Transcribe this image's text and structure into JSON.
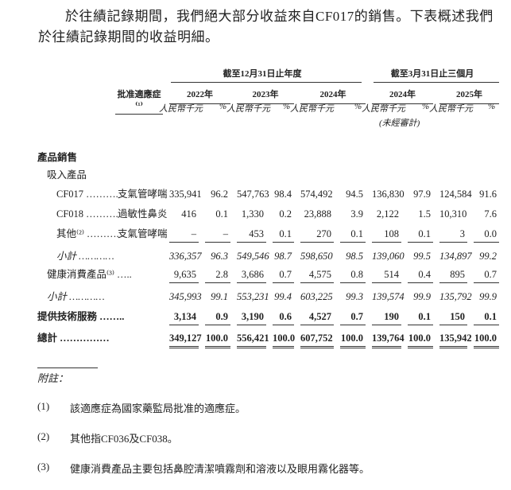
{
  "intro": "於往績記錄期間，我們絕大部分收益來自CF017的銷售。下表概述我們於往績記錄期間的收益明細。",
  "header": {
    "indication": "批准適應症⁽¹⁾",
    "group_year": "截至12月31日止年度",
    "group_quarter": "截至3月31日止三個月",
    "years": [
      "2022年",
      "2023年",
      "2024年",
      "2024年",
      "2025年"
    ],
    "unit_rmb": "人民幣千元",
    "unit_pct": "%",
    "unaudited": "(未經審計)"
  },
  "rows": [
    {
      "label": "產品銷售",
      "style": "bd",
      "indent": 0,
      "indication": "",
      "values": []
    },
    {
      "label": "吸入產品",
      "style": "",
      "indent": 1,
      "indication": "",
      "values": []
    },
    {
      "label": "CF017 ……….",
      "style": "",
      "indent": 2,
      "indication": "支氣管哮喘",
      "values": [
        "335,941",
        "96.2",
        "547,763",
        "98.4",
        "574,492",
        "94.5",
        "136,830",
        "97.9",
        "124,584",
        "91.6"
      ]
    },
    {
      "label": "CF018 ……….",
      "style": "",
      "indent": 2,
      "indication": "過敏性鼻炎",
      "values": [
        "416",
        "0.1",
        "1,330",
        "0.2",
        "23,888",
        "3.9",
        "2,122",
        "1.5",
        "10,310",
        "7.6"
      ]
    },
    {
      "label": "其他⁽²⁾ ……….",
      "style": "",
      "indent": 2,
      "indication": "支氣管哮喘",
      "values": [
        "–",
        "–",
        "453",
        "0.1",
        "270",
        "0.1",
        "108",
        "0.1",
        "3",
        "0.0"
      ],
      "line": "ul"
    },
    {
      "label": "小計 …………",
      "style": "it",
      "indent": 2,
      "indication": "",
      "values": [
        "336,357",
        "96.3",
        "549,546",
        "98.7",
        "598,650",
        "98.5",
        "139,060",
        "99.5",
        "134,897",
        "99.2"
      ]
    },
    {
      "label": "健康消費產品⁽³⁾ …..",
      "style": "",
      "indent": 1,
      "indication": "",
      "values": [
        "9,635",
        "2.8",
        "3,686",
        "0.7",
        "4,575",
        "0.8",
        "514",
        "0.4",
        "895",
        "0.7"
      ],
      "line": "ul"
    },
    {
      "label": "小計 …………",
      "style": "it",
      "indent": 1,
      "indication": "",
      "values": [
        "345,993",
        "99.1",
        "553,231",
        "99.4",
        "603,225",
        "99.3",
        "139,574",
        "99.9",
        "135,792",
        "99.9"
      ]
    },
    {
      "label": "提供技術服務 ……..",
      "style": "bd",
      "indent": 0,
      "indication": "",
      "values": [
        "3,134",
        "0.9",
        "3,190",
        "0.6",
        "4,527",
        "0.7",
        "190",
        "0.1",
        "150",
        "0.1"
      ],
      "line": "ul"
    },
    {
      "label": "總計 ……………",
      "style": "bd",
      "indent": 0,
      "indication": "",
      "values": [
        "349,127",
        "100.0",
        "556,421",
        "100.0",
        "607,752",
        "100.0",
        "139,764",
        "100.0",
        "135,942",
        "100.0"
      ],
      "line": "dul"
    }
  ],
  "notes": {
    "title": "附註：",
    "items": [
      {
        "num": "(1)",
        "text": "該適應症為國家藥監局批准的適應症。"
      },
      {
        "num": "(2)",
        "text": "其他指CF036及CF038。"
      },
      {
        "num": "(3)",
        "text": "健康消費產品主要包括鼻腔清潔噴霧劑和溶液以及眼用霧化器等。"
      }
    ]
  }
}
